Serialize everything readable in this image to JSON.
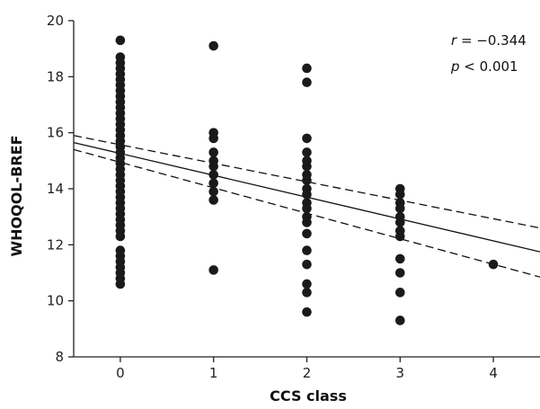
{
  "chart_data": {
    "type": "scatter",
    "xlabel": "CCS class",
    "ylabel": "WHOQOL-BREF",
    "xlim": [
      -0.5,
      4.5
    ],
    "ylim": [
      8,
      20
    ],
    "x_ticks": [
      0,
      1,
      2,
      3,
      4
    ],
    "y_ticks": [
      8,
      10,
      12,
      14,
      16,
      18,
      20
    ],
    "grid": false,
    "annotations": [
      {
        "italic": "r",
        "text": " = −0.344"
      },
      {
        "italic": "p",
        "text": " < 0.001"
      }
    ],
    "points": [
      {
        "x": 0,
        "y": 10.6
      },
      {
        "x": 0,
        "y": 10.8
      },
      {
        "x": 0,
        "y": 11.0
      },
      {
        "x": 0,
        "y": 11.2
      },
      {
        "x": 0,
        "y": 11.4
      },
      {
        "x": 0,
        "y": 11.6
      },
      {
        "x": 0,
        "y": 11.8
      },
      {
        "x": 0,
        "y": 12.3
      },
      {
        "x": 0,
        "y": 12.5
      },
      {
        "x": 0,
        "y": 12.7
      },
      {
        "x": 0,
        "y": 12.9
      },
      {
        "x": 0,
        "y": 13.1
      },
      {
        "x": 0,
        "y": 13.3
      },
      {
        "x": 0,
        "y": 13.5
      },
      {
        "x": 0,
        "y": 13.7
      },
      {
        "x": 0,
        "y": 13.9
      },
      {
        "x": 0,
        "y": 14.1
      },
      {
        "x": 0,
        "y": 14.3
      },
      {
        "x": 0,
        "y": 14.5
      },
      {
        "x": 0,
        "y": 14.7
      },
      {
        "x": 0,
        "y": 14.9
      },
      {
        "x": 0,
        "y": 15.1
      },
      {
        "x": 0,
        "y": 15.3
      },
      {
        "x": 0,
        "y": 15.5
      },
      {
        "x": 0,
        "y": 15.7
      },
      {
        "x": 0,
        "y": 15.9
      },
      {
        "x": 0,
        "y": 16.1
      },
      {
        "x": 0,
        "y": 16.3
      },
      {
        "x": 0,
        "y": 16.5
      },
      {
        "x": 0,
        "y": 16.7
      },
      {
        "x": 0,
        "y": 16.9
      },
      {
        "x": 0,
        "y": 17.1
      },
      {
        "x": 0,
        "y": 17.3
      },
      {
        "x": 0,
        "y": 17.5
      },
      {
        "x": 0,
        "y": 17.7
      },
      {
        "x": 0,
        "y": 17.9
      },
      {
        "x": 0,
        "y": 18.1
      },
      {
        "x": 0,
        "y": 18.3
      },
      {
        "x": 0,
        "y": 18.5
      },
      {
        "x": 0,
        "y": 18.7
      },
      {
        "x": 0,
        "y": 19.3
      },
      {
        "x": 1,
        "y": 11.1
      },
      {
        "x": 1,
        "y": 13.6
      },
      {
        "x": 1,
        "y": 13.9
      },
      {
        "x": 1,
        "y": 14.2
      },
      {
        "x": 1,
        "y": 14.5
      },
      {
        "x": 1,
        "y": 14.8
      },
      {
        "x": 1,
        "y": 15.0
      },
      {
        "x": 1,
        "y": 15.3
      },
      {
        "x": 1,
        "y": 15.8
      },
      {
        "x": 1,
        "y": 16.0
      },
      {
        "x": 1,
        "y": 19.1
      },
      {
        "x": 2,
        "y": 9.6
      },
      {
        "x": 2,
        "y": 10.3
      },
      {
        "x": 2,
        "y": 10.6
      },
      {
        "x": 2,
        "y": 11.3
      },
      {
        "x": 2,
        "y": 11.8
      },
      {
        "x": 2,
        "y": 12.4
      },
      {
        "x": 2,
        "y": 12.8
      },
      {
        "x": 2,
        "y": 13.0
      },
      {
        "x": 2,
        "y": 13.3
      },
      {
        "x": 2,
        "y": 13.5
      },
      {
        "x": 2,
        "y": 13.8
      },
      {
        "x": 2,
        "y": 14.0
      },
      {
        "x": 2,
        "y": 14.3
      },
      {
        "x": 2,
        "y": 14.5
      },
      {
        "x": 2,
        "y": 14.8
      },
      {
        "x": 2,
        "y": 15.0
      },
      {
        "x": 2,
        "y": 15.3
      },
      {
        "x": 2,
        "y": 15.8
      },
      {
        "x": 2,
        "y": 17.8
      },
      {
        "x": 2,
        "y": 18.3
      },
      {
        "x": 3,
        "y": 9.3
      },
      {
        "x": 3,
        "y": 10.3
      },
      {
        "x": 3,
        "y": 11.0
      },
      {
        "x": 3,
        "y": 11.5
      },
      {
        "x": 3,
        "y": 12.3
      },
      {
        "x": 3,
        "y": 12.5
      },
      {
        "x": 3,
        "y": 12.8
      },
      {
        "x": 3,
        "y": 13.0
      },
      {
        "x": 3,
        "y": 13.3
      },
      {
        "x": 3,
        "y": 13.5
      },
      {
        "x": 3,
        "y": 13.8
      },
      {
        "x": 3,
        "y": 14.0
      },
      {
        "x": 4,
        "y": 11.3
      }
    ],
    "regression": {
      "line": [
        {
          "x": -0.5,
          "y": 15.65
        },
        {
          "x": 4.5,
          "y": 11.75
        }
      ],
      "ci_upper": [
        {
          "x": -0.5,
          "y": 15.9
        },
        {
          "x": 4.5,
          "y": 12.6
        }
      ],
      "ci_lower": [
        {
          "x": -0.5,
          "y": 15.4
        },
        {
          "x": 4.5,
          "y": 10.85
        }
      ]
    },
    "colors": {
      "points": "#1a1a1a",
      "lines": "#111111",
      "axis": "#222222"
    }
  }
}
